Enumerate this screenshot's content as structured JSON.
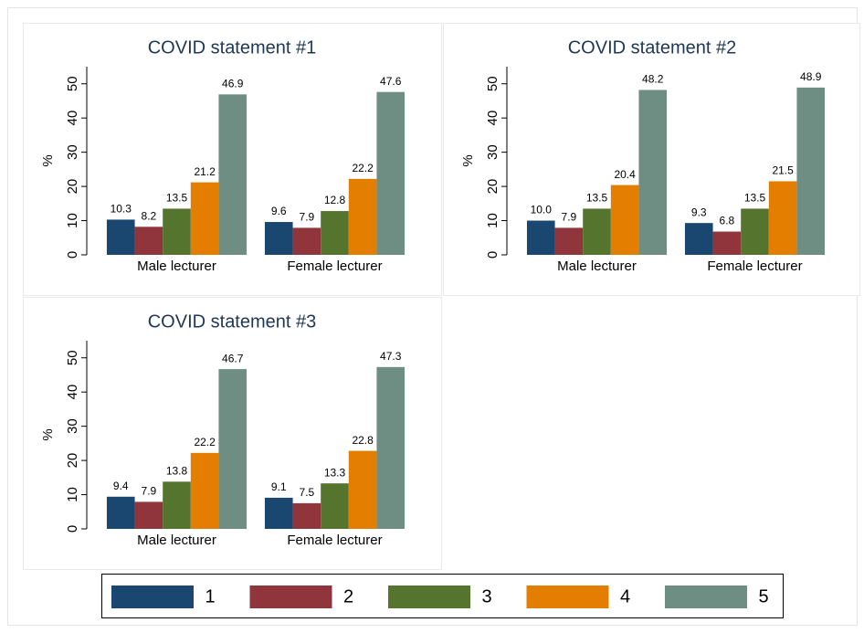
{
  "chart_data": [
    {
      "type": "bar",
      "title": "COVID statement #1",
      "ylabel": "%",
      "categories": [
        "Male lecturer",
        "Female lecturer"
      ],
      "series": [
        {
          "values": [
            10.3,
            9.6
          ],
          "value_labels": [
            "10.3",
            "9.6"
          ]
        },
        {
          "values": [
            8.2,
            7.9
          ],
          "value_labels": [
            "8.2",
            "7.9"
          ]
        },
        {
          "values": [
            13.5,
            12.8
          ],
          "value_labels": [
            "13.5",
            "12.8"
          ]
        },
        {
          "values": [
            21.2,
            22.2
          ],
          "value_labels": [
            "21.2",
            "22.2"
          ]
        },
        {
          "values": [
            46.9,
            47.6
          ],
          "value_labels": [
            "46.9",
            "47.6"
          ]
        }
      ],
      "ylim": [
        0,
        55
      ],
      "yticks": [
        0,
        10,
        20,
        30,
        40,
        50
      ]
    },
    {
      "type": "bar",
      "title": "COVID statement #2",
      "ylabel": "%",
      "categories": [
        "Male lecturer",
        "Female lecturer"
      ],
      "series": [
        {
          "values": [
            10.0,
            9.3
          ],
          "value_labels": [
            "10.0",
            "9.3"
          ]
        },
        {
          "values": [
            7.9,
            6.8
          ],
          "value_labels": [
            "7.9",
            "6.8"
          ]
        },
        {
          "values": [
            13.5,
            13.5
          ],
          "value_labels": [
            "13.5",
            "13.5"
          ]
        },
        {
          "values": [
            20.4,
            21.5
          ],
          "value_labels": [
            "20.4",
            "21.5"
          ]
        },
        {
          "values": [
            48.2,
            48.9
          ],
          "value_labels": [
            "48.2",
            "48.9"
          ]
        }
      ],
      "ylim": [
        0,
        55
      ],
      "yticks": [
        0,
        10,
        20,
        30,
        40,
        50
      ]
    },
    {
      "type": "bar",
      "title": "COVID statement #3",
      "ylabel": "%",
      "categories": [
        "Male lecturer",
        "Female lecturer"
      ],
      "series": [
        {
          "values": [
            9.4,
            9.1
          ],
          "value_labels": [
            "9.4",
            "9.1"
          ]
        },
        {
          "values": [
            7.9,
            7.5
          ],
          "value_labels": [
            "7.9",
            "7.5"
          ]
        },
        {
          "values": [
            13.8,
            13.3
          ],
          "value_labels": [
            "13.8",
            "13.3"
          ]
        },
        {
          "values": [
            22.2,
            22.8
          ],
          "value_labels": [
            "22.2",
            "22.8"
          ]
        },
        {
          "values": [
            46.7,
            47.3
          ],
          "value_labels": [
            "46.7",
            "47.3"
          ]
        }
      ],
      "ylim": [
        0,
        55
      ],
      "yticks": [
        0,
        10,
        20,
        30,
        40,
        50
      ]
    }
  ],
  "legend": {
    "names": [
      "1",
      "2",
      "3",
      "4",
      "5"
    ],
    "colors": [
      "#1a476f",
      "#90353b",
      "#55752f",
      "#e37e00",
      "#6e8e84"
    ]
  }
}
